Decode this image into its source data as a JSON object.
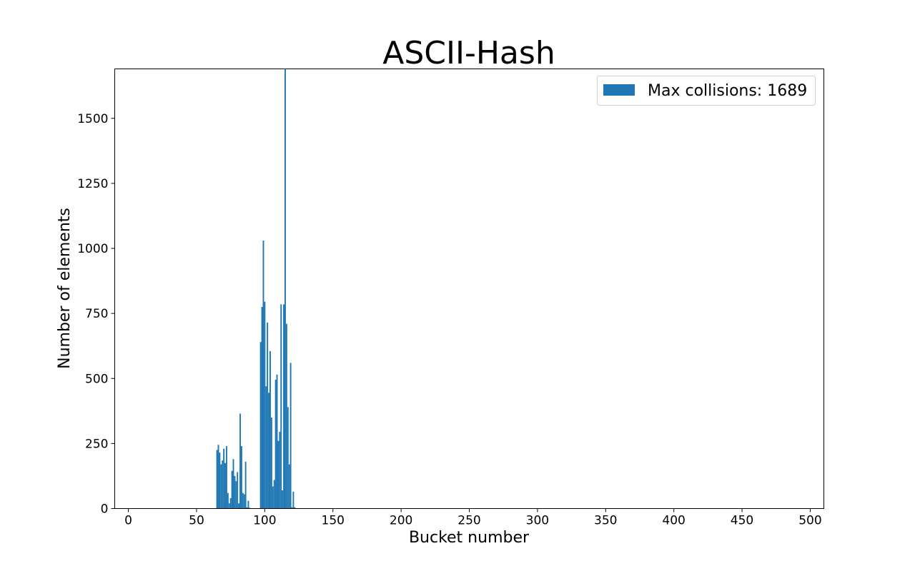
{
  "chart_data": {
    "type": "bar",
    "title": "ASCII-Hash",
    "xlabel": "Bucket number",
    "ylabel": "Number of elements",
    "xlim": [
      -10,
      510
    ],
    "ylim": [
      0,
      1690
    ],
    "xticks": [
      0,
      50,
      100,
      150,
      200,
      250,
      300,
      350,
      400,
      450,
      500
    ],
    "yticks": [
      0,
      250,
      500,
      750,
      1000,
      1250,
      1500
    ],
    "grid": false,
    "legend_position": "top-right",
    "bar_color": "#1f77b4",
    "series": [
      {
        "name": "Max collisions: 1689",
        "x": [
          65,
          66,
          67,
          68,
          69,
          70,
          71,
          72,
          73,
          74,
          75,
          76,
          77,
          78,
          79,
          80,
          81,
          82,
          83,
          84,
          85,
          86,
          87,
          88,
          89,
          97,
          98,
          99,
          100,
          101,
          102,
          103,
          104,
          105,
          106,
          107,
          108,
          109,
          110,
          111,
          112,
          113,
          114,
          115,
          116,
          117,
          118,
          119,
          120,
          121,
          122
        ],
        "values": [
          225,
          245,
          215,
          170,
          185,
          230,
          175,
          240,
          60,
          20,
          40,
          145,
          190,
          125,
          105,
          140,
          20,
          365,
          240,
          60,
          55,
          180,
          5,
          30,
          3,
          640,
          775,
          1030,
          795,
          470,
          715,
          445,
          605,
          350,
          85,
          110,
          495,
          515,
          260,
          295,
          785,
          70,
          785,
          1689,
          710,
          390,
          170,
          560,
          5,
          65,
          5
        ]
      }
    ]
  }
}
